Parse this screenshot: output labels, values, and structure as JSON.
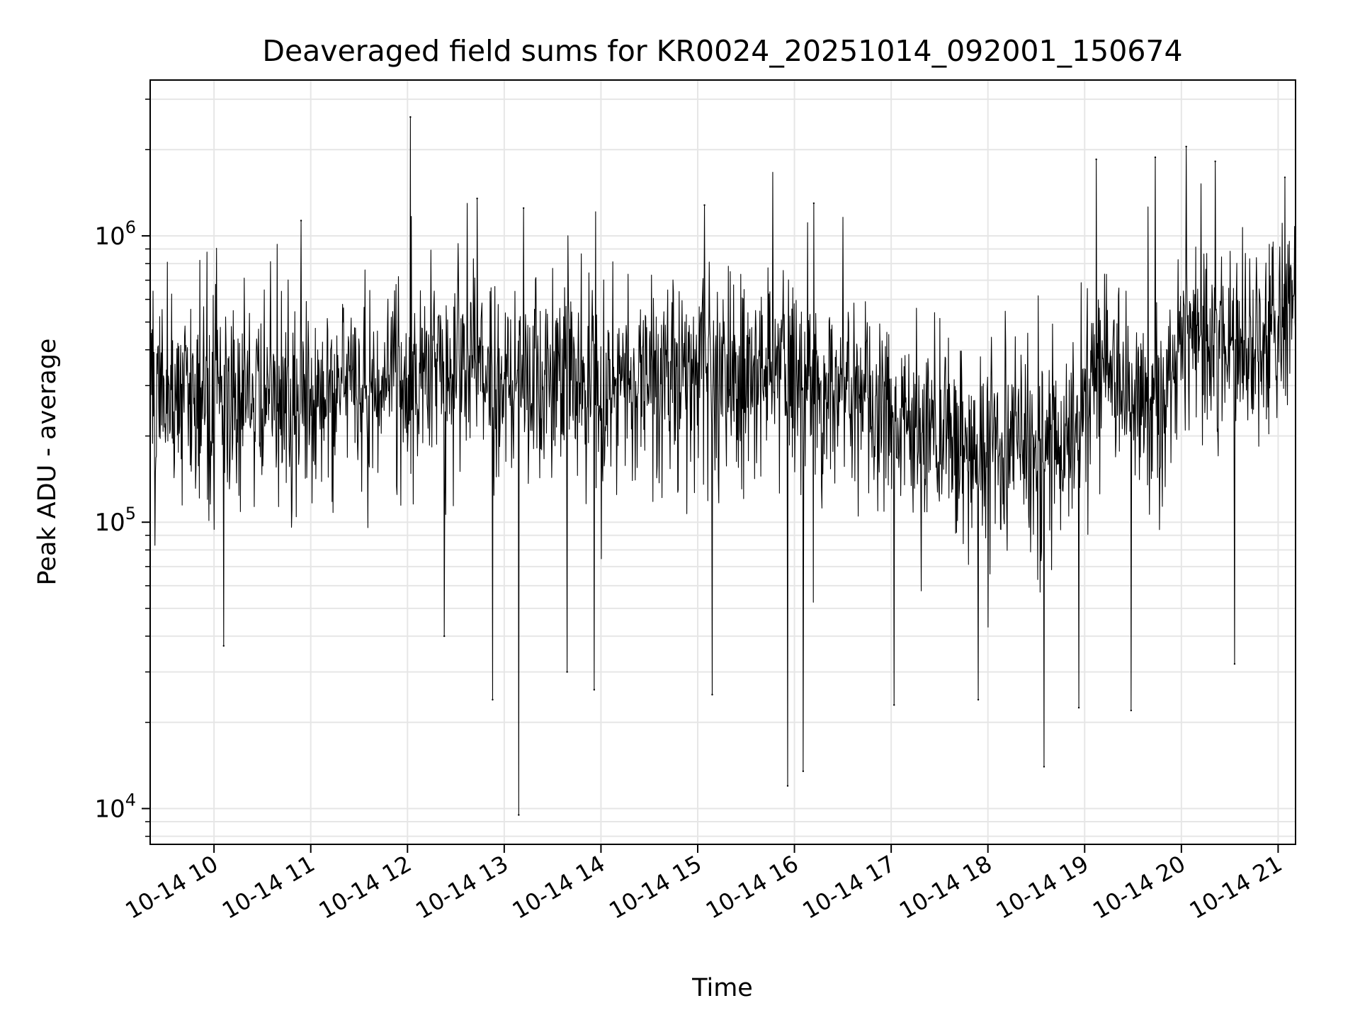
{
  "chart_data": {
    "type": "line",
    "title": "Deaveraged field sums for KR0024_20251014_092001_150674",
    "xlabel": "Time",
    "ylabel": "Peak ADU - average",
    "yscale": "log",
    "ylim": [
      7500,
      3500000
    ],
    "xlim_hours": [
      9.34,
      21.18
    ],
    "grid": true,
    "legend": "none",
    "colors": {
      "line": "#000000",
      "grid": "#e6e6e6",
      "axes": "#000000",
      "background": "#ffffff"
    },
    "x_ticks": [
      {
        "hour": 10,
        "label": "10-14 10"
      },
      {
        "hour": 11,
        "label": "10-14 11"
      },
      {
        "hour": 12,
        "label": "10-14 12"
      },
      {
        "hour": 13,
        "label": "10-14 13"
      },
      {
        "hour": 14,
        "label": "10-14 14"
      },
      {
        "hour": 15,
        "label": "10-14 15"
      },
      {
        "hour": 16,
        "label": "10-14 16"
      },
      {
        "hour": 17,
        "label": "10-14 17"
      },
      {
        "hour": 18,
        "label": "10-14 18"
      },
      {
        "hour": 19,
        "label": "10-14 19"
      },
      {
        "hour": 20,
        "label": "10-14 20"
      },
      {
        "hour": 21,
        "label": "10-14 21"
      }
    ],
    "y_major_ticks": [
      {
        "value": 10000,
        "base": "10",
        "exp": "4"
      },
      {
        "value": 100000,
        "base": "10",
        "exp": "5"
      },
      {
        "value": 1000000,
        "base": "10",
        "exp": "6"
      }
    ],
    "y_minor_ticks": [
      8000,
      9000,
      20000,
      30000,
      40000,
      50000,
      60000,
      70000,
      80000,
      90000,
      200000,
      300000,
      400000,
      500000,
      600000,
      700000,
      800000,
      900000,
      2000000,
      3000000
    ],
    "series": [
      {
        "name": "deaveraged field sum",
        "sample_count": 2400,
        "baseline_profile": [
          {
            "hour": 9.34,
            "value": 280000
          },
          {
            "hour": 10.0,
            "value": 290000
          },
          {
            "hour": 10.5,
            "value": 260000
          },
          {
            "hour": 11.0,
            "value": 280000
          },
          {
            "hour": 12.0,
            "value": 310000
          },
          {
            "hour": 13.0,
            "value": 320000
          },
          {
            "hour": 14.0,
            "value": 300000
          },
          {
            "hour": 15.0,
            "value": 320000
          },
          {
            "hour": 16.0,
            "value": 330000
          },
          {
            "hour": 16.5,
            "value": 300000
          },
          {
            "hour": 17.0,
            "value": 230000
          },
          {
            "hour": 17.5,
            "value": 200000
          },
          {
            "hour": 18.0,
            "value": 190000
          },
          {
            "hour": 18.5,
            "value": 180000
          },
          {
            "hour": 18.9,
            "value": 220000
          },
          {
            "hour": 19.2,
            "value": 360000
          },
          {
            "hour": 19.5,
            "value": 280000
          },
          {
            "hour": 19.8,
            "value": 260000
          },
          {
            "hour": 20.0,
            "value": 500000
          },
          {
            "hour": 20.3,
            "value": 420000
          },
          {
            "hour": 20.7,
            "value": 400000
          },
          {
            "hour": 21.0,
            "value": 500000
          },
          {
            "hour": 21.18,
            "value": 550000
          }
        ],
        "notable_points": [
          {
            "hour": 10.1,
            "value": 37000
          },
          {
            "hour": 10.9,
            "value": 1130000
          },
          {
            "hour": 12.03,
            "value": 2600000
          },
          {
            "hour": 12.38,
            "value": 40000
          },
          {
            "hour": 12.72,
            "value": 1350000
          },
          {
            "hour": 12.88,
            "value": 24000
          },
          {
            "hour": 13.15,
            "value": 9500
          },
          {
            "hour": 13.2,
            "value": 1250000
          },
          {
            "hour": 13.65,
            "value": 30000
          },
          {
            "hour": 13.93,
            "value": 26000
          },
          {
            "hour": 15.07,
            "value": 1280000
          },
          {
            "hour": 15.15,
            "value": 25000
          },
          {
            "hour": 15.93,
            "value": 12000
          },
          {
            "hour": 16.09,
            "value": 13500
          },
          {
            "hour": 16.2,
            "value": 1300000
          },
          {
            "hour": 17.03,
            "value": 23000
          },
          {
            "hour": 17.9,
            "value": 24000
          },
          {
            "hour": 18.58,
            "value": 14000
          },
          {
            "hour": 18.94,
            "value": 22500
          },
          {
            "hour": 19.12,
            "value": 1850000
          },
          {
            "hour": 19.48,
            "value": 22000
          },
          {
            "hour": 19.73,
            "value": 1880000
          },
          {
            "hour": 20.05,
            "value": 2050000
          },
          {
            "hour": 20.35,
            "value": 1820000
          },
          {
            "hour": 20.55,
            "value": 32000
          },
          {
            "hour": 21.07,
            "value": 1600000
          }
        ]
      }
    ]
  }
}
